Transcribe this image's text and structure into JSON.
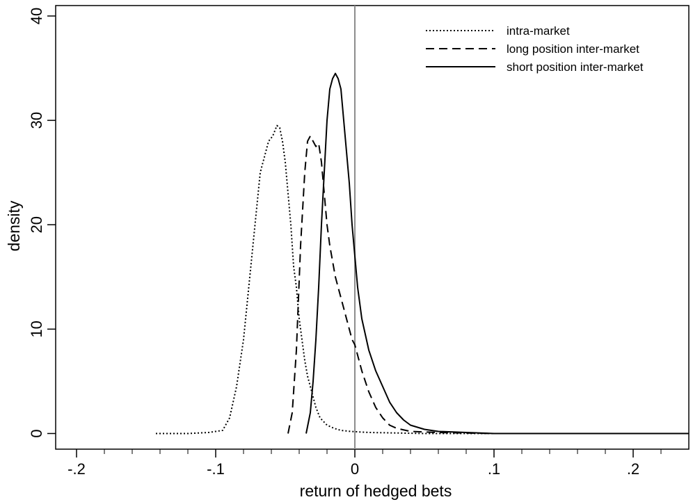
{
  "chart_data": {
    "type": "line",
    "xlabel": "return of hedged bets",
    "ylabel": "density",
    "xlim": [
      -0.215,
      0.24
    ],
    "ylim": [
      -1.5,
      41
    ],
    "x_ticks": [
      -0.2,
      -0.1,
      0,
      0.1,
      0.2
    ],
    "x_tick_labels": [
      "-.2",
      "-.1",
      "0",
      ".1",
      ".2"
    ],
    "x_minor_ticks": [
      -0.18,
      -0.16,
      -0.14,
      -0.12,
      -0.08,
      -0.06,
      -0.04,
      -0.02,
      0.02,
      0.04,
      0.06,
      0.08,
      0.12,
      0.14,
      0.16,
      0.18,
      0.22
    ],
    "y_ticks": [
      0,
      10,
      20,
      30,
      40
    ],
    "y_tick_labels": [
      "0",
      "10",
      "20",
      "30",
      "40"
    ],
    "vertical_reference_line": 0,
    "grid": false,
    "legend_position": "top-right",
    "series": [
      {
        "name": "intra-market",
        "style": "dotted",
        "color": "#000000",
        "x": [
          -0.143,
          -0.12,
          -0.105,
          -0.095,
          -0.09,
          -0.085,
          -0.08,
          -0.077,
          -0.074,
          -0.071,
          -0.068,
          -0.065,
          -0.062,
          -0.059,
          -0.056,
          -0.054,
          -0.052,
          -0.05,
          -0.048,
          -0.046,
          -0.044,
          -0.042,
          -0.04,
          -0.038,
          -0.036,
          -0.034,
          -0.032,
          -0.03,
          -0.028,
          -0.025,
          -0.02,
          -0.015,
          -0.01,
          -0.003,
          0.01,
          0.05,
          0.1,
          0.24
        ],
        "y": [
          0,
          0,
          0.1,
          0.3,
          1.5,
          4.5,
          9,
          13,
          17,
          21,
          25,
          26.5,
          28,
          28.5,
          29.5,
          29.3,
          28,
          26,
          23,
          20,
          16,
          14,
          11,
          9,
          7,
          5.5,
          4.5,
          3.5,
          2.5,
          1.5,
          0.8,
          0.5,
          0.3,
          0.2,
          0.1,
          0,
          0,
          0
        ]
      },
      {
        "name": "long position inter-market",
        "style": "dashed",
        "color": "#000000",
        "x": [
          -0.048,
          -0.045,
          -0.042,
          -0.039,
          -0.036,
          -0.034,
          -0.032,
          -0.03,
          -0.028,
          -0.026,
          -0.024,
          -0.022,
          -0.02,
          -0.018,
          -0.016,
          -0.014,
          -0.012,
          -0.01,
          -0.008,
          -0.006,
          -0.004,
          -0.002,
          0,
          0.005,
          0.01,
          0.015,
          0.02,
          0.025,
          0.03,
          0.04,
          0.06,
          0.1,
          0.24
        ],
        "y": [
          0,
          2,
          8,
          18,
          25,
          28,
          28.5,
          28,
          27.5,
          27.8,
          26,
          23,
          20,
          18,
          16.5,
          15,
          14,
          13,
          12,
          11,
          10,
          9,
          8.5,
          6,
          4,
          2.5,
          1.5,
          0.8,
          0.5,
          0.2,
          0.1,
          0,
          0
        ]
      },
      {
        "name": "short position inter-market",
        "style": "solid",
        "color": "#000000",
        "x": [
          -0.035,
          -0.032,
          -0.03,
          -0.028,
          -0.026,
          -0.024,
          -0.022,
          -0.02,
          -0.018,
          -0.016,
          -0.014,
          -0.012,
          -0.01,
          -0.008,
          -0.006,
          -0.004,
          -0.002,
          0,
          0.002,
          0.005,
          0.01,
          0.015,
          0.02,
          0.025,
          0.03,
          0.035,
          0.04,
          0.05,
          0.06,
          0.08,
          0.1,
          0.24
        ],
        "y": [
          0,
          2,
          5,
          9,
          14,
          20,
          25,
          30,
          33,
          34,
          34.5,
          34,
          33,
          30,
          27,
          24,
          20,
          17,
          14,
          11,
          8,
          6,
          4.5,
          3,
          2,
          1.3,
          0.8,
          0.4,
          0.2,
          0.1,
          0,
          0
        ]
      }
    ]
  }
}
